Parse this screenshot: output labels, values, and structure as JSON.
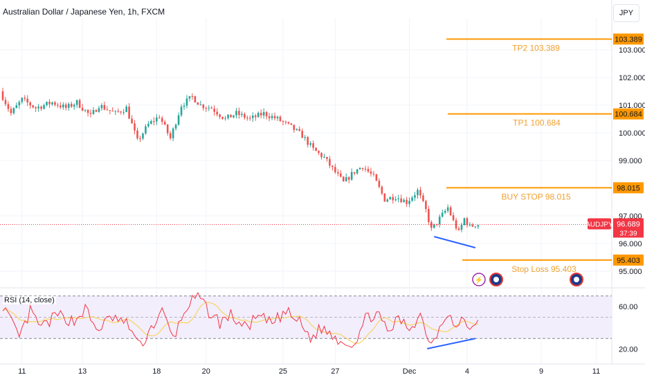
{
  "header": {
    "title": "Australian Dollar / Japanese Yen, 1h, FXCM",
    "currency_button": "JPY"
  },
  "chart_data": {
    "type": "candlestick",
    "symbol": "AUDJPY",
    "ylim": [
      94.5,
      103.9
    ],
    "y_ticks": [
      95.0,
      96.0,
      97.0,
      99.0,
      100.0,
      101.0,
      102.0,
      103.0
    ],
    "y_tick_labels": [
      "95.000",
      "96.000",
      "97.000",
      "99.000",
      "100.000",
      "101.000",
      "102.000",
      "103.000"
    ],
    "x_tick_labels": [
      "11",
      "13",
      "18",
      "20",
      "25",
      "27",
      "Dec",
      "4",
      "9",
      "11"
    ],
    "price_path": [
      {
        "i": 0,
        "p": 101.5
      },
      {
        "i": 4,
        "p": 100.7
      },
      {
        "i": 8,
        "p": 101.2
      },
      {
        "i": 13,
        "p": 100.9
      },
      {
        "i": 19,
        "p": 101.1
      },
      {
        "i": 24,
        "p": 100.9
      },
      {
        "i": 28,
        "p": 101.1
      },
      {
        "i": 33,
        "p": 100.6
      },
      {
        "i": 36,
        "p": 101.0
      },
      {
        "i": 42,
        "p": 100.7
      },
      {
        "i": 46,
        "p": 100.9
      },
      {
        "i": 50,
        "p": 99.7
      },
      {
        "i": 54,
        "p": 100.3
      },
      {
        "i": 58,
        "p": 100.6
      },
      {
        "i": 62,
        "p": 99.8
      },
      {
        "i": 66,
        "p": 101.0
      },
      {
        "i": 70,
        "p": 101.3
      },
      {
        "i": 73,
        "p": 101.0
      },
      {
        "i": 77,
        "p": 100.9
      },
      {
        "i": 82,
        "p": 100.5
      },
      {
        "i": 86,
        "p": 100.7
      },
      {
        "i": 91,
        "p": 100.5
      },
      {
        "i": 96,
        "p": 100.7
      },
      {
        "i": 101,
        "p": 100.5
      },
      {
        "i": 106,
        "p": 100.2
      },
      {
        "i": 110,
        "p": 99.9
      },
      {
        "i": 114,
        "p": 99.4
      },
      {
        "i": 118,
        "p": 99.1
      },
      {
        "i": 121,
        "p": 98.7
      },
      {
        "i": 125,
        "p": 98.2
      },
      {
        "i": 129,
        "p": 98.6
      },
      {
        "i": 132,
        "p": 98.8
      },
      {
        "i": 136,
        "p": 98.4
      },
      {
        "i": 140,
        "p": 97.6
      },
      {
        "i": 144,
        "p": 97.7
      },
      {
        "i": 148,
        "p": 97.5
      },
      {
        "i": 152,
        "p": 97.9
      },
      {
        "i": 155,
        "p": 97.2
      },
      {
        "i": 157,
        "p": 96.5
      },
      {
        "i": 160,
        "p": 96.9
      },
      {
        "i": 163,
        "p": 97.3
      },
      {
        "i": 165,
        "p": 96.8
      },
      {
        "i": 167,
        "p": 96.4
      },
      {
        "i": 169,
        "p": 96.9
      },
      {
        "i": 171,
        "p": 96.6
      },
      {
        "i": 173,
        "p": 96.69
      }
    ],
    "candle_count": 174,
    "last_price": {
      "symbol": "AUDJPY",
      "value": 96.689,
      "label": "96.689",
      "countdown": "37:39"
    },
    "levels": [
      {
        "name": "TP2",
        "value": 103.389,
        "label": "TP2 103.389",
        "axis_label": "103.389"
      },
      {
        "name": "TP1",
        "value": 100.684,
        "label": "TP1 100.684",
        "axis_label": "100.684"
      },
      {
        "name": "BUY STOP",
        "value": 98.015,
        "label": "BUY STOP 98.015",
        "axis_label": "98.015"
      },
      {
        "name": "Stop Loss",
        "value": 95.403,
        "label": "Stop Loss 95.403",
        "axis_label": "95.403"
      }
    ],
    "trendline_price": [
      {
        "i": 157,
        "p": 96.25
      },
      {
        "i": 172,
        "p": 95.85
      }
    ],
    "rsi": {
      "label": "RSI (14, close)",
      "ylim": [
        10,
        75
      ],
      "y_ticks": [
        20.0,
        60.0
      ],
      "y_tick_labels": [
        "20.00",
        "60.00"
      ],
      "upper_band": 70,
      "middle_band": 50,
      "lower_band": 30,
      "path": [
        {
          "i": 0,
          "p": 62
        },
        {
          "i": 3,
          "p": 45
        },
        {
          "i": 6,
          "p": 30
        },
        {
          "i": 10,
          "p": 55
        },
        {
          "i": 14,
          "p": 40
        },
        {
          "i": 20,
          "p": 52
        },
        {
          "i": 26,
          "p": 46
        },
        {
          "i": 30,
          "p": 58
        },
        {
          "i": 34,
          "p": 38
        },
        {
          "i": 40,
          "p": 50
        },
        {
          "i": 46,
          "p": 42
        },
        {
          "i": 50,
          "p": 22
        },
        {
          "i": 54,
          "p": 40
        },
        {
          "i": 58,
          "p": 55
        },
        {
          "i": 62,
          "p": 30
        },
        {
          "i": 67,
          "p": 60
        },
        {
          "i": 71,
          "p": 70
        },
        {
          "i": 75,
          "p": 55
        },
        {
          "i": 79,
          "p": 45
        },
        {
          "i": 83,
          "p": 52
        },
        {
          "i": 88,
          "p": 40
        },
        {
          "i": 93,
          "p": 50
        },
        {
          "i": 98,
          "p": 44
        },
        {
          "i": 103,
          "p": 55
        },
        {
          "i": 108,
          "p": 45
        },
        {
          "i": 112,
          "p": 30
        },
        {
          "i": 116,
          "p": 40
        },
        {
          "i": 120,
          "p": 33
        },
        {
          "i": 124,
          "p": 27
        },
        {
          "i": 128,
          "p": 26
        },
        {
          "i": 132,
          "p": 48
        },
        {
          "i": 136,
          "p": 55
        },
        {
          "i": 140,
          "p": 35
        },
        {
          "i": 144,
          "p": 48
        },
        {
          "i": 148,
          "p": 40
        },
        {
          "i": 152,
          "p": 52
        },
        {
          "i": 156,
          "p": 24
        },
        {
          "i": 159,
          "p": 42
        },
        {
          "i": 162,
          "p": 56
        },
        {
          "i": 165,
          "p": 38
        },
        {
          "i": 168,
          "p": 50
        },
        {
          "i": 170,
          "p": 36
        },
        {
          "i": 173,
          "p": 52
        }
      ],
      "trendline": [
        {
          "i": 157,
          "p": 23
        },
        {
          "i": 172,
          "p": 30
        }
      ]
    },
    "colors": {
      "up": "#26a69a",
      "down": "#ef5350",
      "level": "#ff9800",
      "level_text": "#f0a030",
      "trendline": "#2962ff",
      "price_label": "#f23645",
      "rsi_line": "#f23645",
      "rsi_ma": "#f5d76e",
      "rsi_band_fill": "#f3eefc"
    },
    "grid": true
  }
}
